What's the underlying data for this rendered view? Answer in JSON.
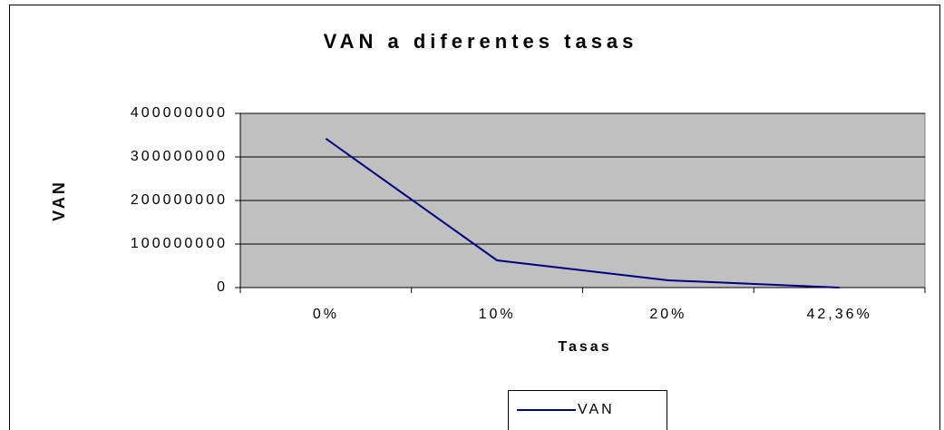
{
  "chart_data": {
    "type": "line",
    "title": "VAN a diferentes tasas",
    "x_label": "Tasas",
    "y_label": "VAN",
    "categories": [
      "0%",
      "10%",
      "20%",
      "42,36%"
    ],
    "series": [
      {
        "name": "VAN",
        "color": "#000080",
        "values": [
          342000000,
          62500000,
          16700000,
          0
        ]
      }
    ],
    "ylim": [
      0,
      400000000
    ],
    "yticks": [
      0,
      100000000,
      200000000,
      300000000,
      400000000
    ],
    "grid": true,
    "plot_background": "#c0c0c0",
    "legend": "bottom"
  }
}
